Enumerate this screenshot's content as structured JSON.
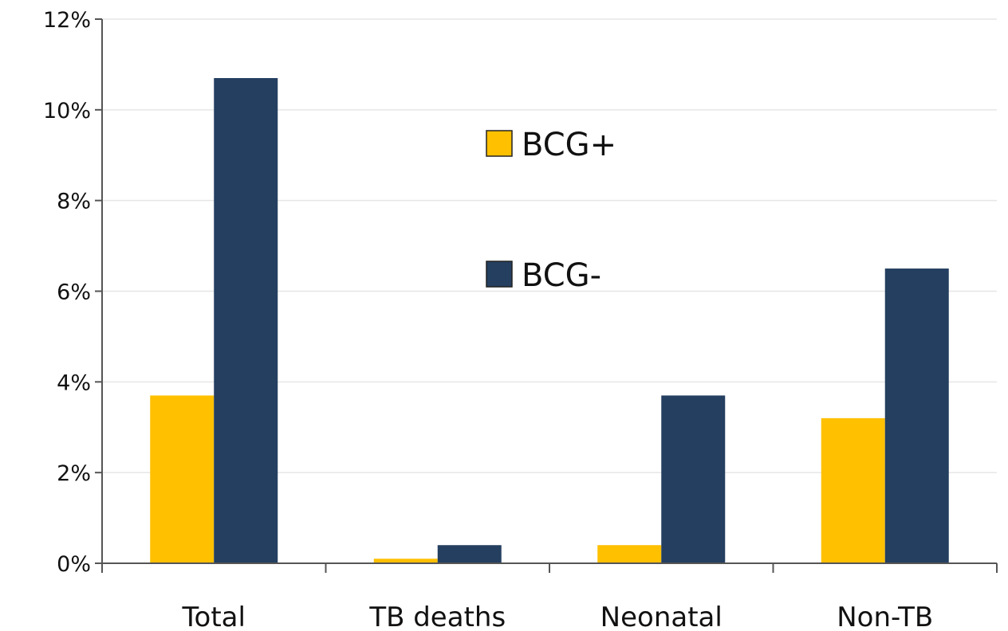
{
  "chart_data": {
    "type": "bar",
    "categories": [
      "Total",
      "TB deaths",
      "Neonatal",
      "Non-TB"
    ],
    "series": [
      {
        "name": "BCG+",
        "color": "#FFC000",
        "values": [
          3.7,
          0.1,
          0.4,
          3.2
        ]
      },
      {
        "name": "BCG-",
        "color": "#243F60",
        "values": [
          10.7,
          0.4,
          3.7,
          6.5
        ]
      }
    ],
    "title": "",
    "xlabel": "",
    "ylabel": "",
    "ylim": [
      0,
      12
    ],
    "yticks": [
      0,
      2,
      4,
      6,
      8,
      10,
      12
    ],
    "ytick_format": "percent",
    "grid": true,
    "legend_position": "top-center"
  }
}
